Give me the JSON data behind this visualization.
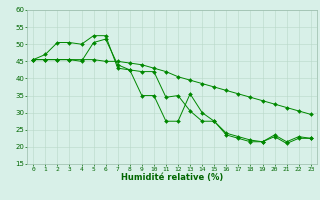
{
  "xlabel": "Humidité relative (%)",
  "bg_color": "#d8f0e8",
  "grid_color_major": "#b8d8c8",
  "grid_color_minor": "#c8e4d4",
  "line_color": "#008800",
  "marker_color": "#008800",
  "xlim": [
    -0.5,
    23.5
  ],
  "ylim": [
    15,
    60
  ],
  "yticks": [
    15,
    20,
    25,
    30,
    35,
    40,
    45,
    50,
    55,
    60
  ],
  "xticks": [
    0,
    1,
    2,
    3,
    4,
    5,
    6,
    7,
    8,
    9,
    10,
    11,
    12,
    13,
    14,
    15,
    16,
    17,
    18,
    19,
    20,
    21,
    22,
    23
  ],
  "series": [
    [
      45.5,
      47.0,
      50.5,
      50.5,
      50.0,
      52.5,
      52.5,
      43.0,
      42.5,
      35.0,
      35.0,
      27.5,
      27.5,
      35.5,
      30.0,
      27.5,
      24.0,
      23.0,
      22.0,
      21.5,
      23.5,
      21.5,
      23.0,
      22.5
    ],
    [
      45.5,
      45.5,
      45.5,
      45.5,
      45.0,
      50.5,
      51.5,
      44.0,
      42.5,
      42.0,
      42.0,
      34.5,
      35.0,
      30.5,
      27.5,
      27.5,
      23.5,
      22.5,
      21.5,
      21.5,
      23.0,
      21.0,
      22.5,
      22.5
    ],
    [
      45.5,
      45.5,
      45.5,
      45.5,
      45.5,
      45.5,
      45.0,
      45.0,
      44.5,
      44.0,
      43.0,
      42.0,
      40.5,
      39.5,
      38.5,
      37.5,
      36.5,
      35.5,
      34.5,
      33.5,
      32.5,
      31.5,
      30.5,
      29.5
    ]
  ],
  "xlabel_color": "#006600",
  "xlabel_fontsize": 6,
  "tick_fontsize": 4.5,
  "tick_color": "#006600",
  "linewidth": 0.7,
  "markersize": 2.0
}
